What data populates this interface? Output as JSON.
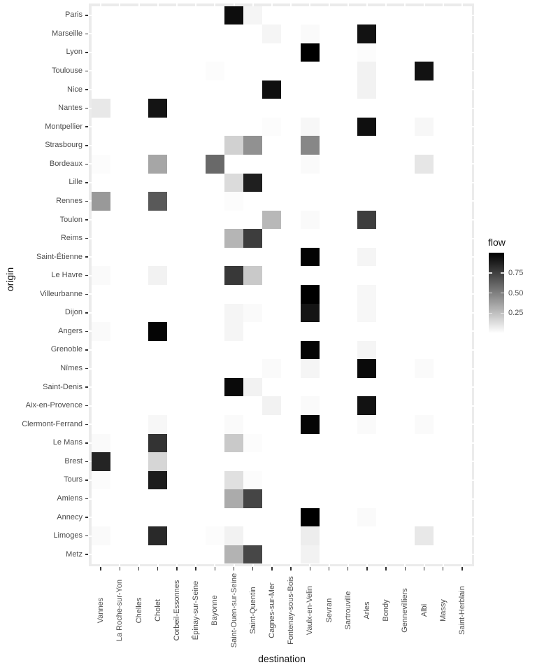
{
  "figure": {
    "x_axis_title": "destination",
    "y_axis_title": "origin",
    "legend_title": "flow"
  },
  "chart_data": {
    "type": "heatmap",
    "title": "",
    "xlabel": "destination",
    "ylabel": "origin",
    "legend": {
      "title": "flow",
      "position": "right",
      "tick_labels": [
        "0.75",
        "0.50",
        "0.25"
      ],
      "tick_values": [
        0.75,
        0.5,
        0.25
      ]
    },
    "fill_scale": {
      "low_color": "#FFFFFF",
      "high_color": "#000000",
      "domain": [
        0,
        1
      ]
    },
    "grid": "on",
    "colors": {
      "panel_background": "#EBEBEB",
      "gridline": "#FFFFFF",
      "axis_text": "#4D4D4D",
      "axis_title": "#111111",
      "tick_mark": "#333333",
      "empty_cell": "#FFFFFF"
    },
    "x_categories": [
      "Vannes",
      "La Roche-sur-Yon",
      "Chelles",
      "Cholet",
      "Corbeil-Essonnes",
      "Épinay-sur-Seine",
      "Bayonne",
      "Saint-Ouen-sur-Seine",
      "Saint-Quentin",
      "Cagnes-sur-Mer",
      "Fontenay-sous-Bois",
      "Vaulx-en-Velin",
      "Sevran",
      "Sartrouville",
      "Arles",
      "Bondy",
      "Gennevilliers",
      "Albi",
      "Massy",
      "Saint-Herblain"
    ],
    "y_categories": [
      "Paris",
      "Marseille",
      "Lyon",
      "Toulouse",
      "Nice",
      "Nantes",
      "Montpellier",
      "Strasbourg",
      "Bordeaux",
      "Lille",
      "Rennes",
      "Toulon",
      "Reims",
      "Saint-Étienne",
      "Le Havre",
      "Villeurbanne",
      "Dijon",
      "Angers",
      "Grenoble",
      "Nîmes",
      "Saint-Denis",
      "Aix-en-Provence",
      "Clermont-Ferrand",
      "Le Mans",
      "Brest",
      "Tours",
      "Amiens",
      "Annecy",
      "Limoges",
      "Metz"
    ],
    "cells": [
      {
        "origin": "Paris",
        "destination": "Saint-Ouen-sur-Seine",
        "flow": 0.95
      },
      {
        "origin": "Paris",
        "destination": "Saint-Quentin",
        "flow": 0.04
      },
      {
        "origin": "Marseille",
        "destination": "Cagnes-sur-Mer",
        "flow": 0.04
      },
      {
        "origin": "Marseille",
        "destination": "Vaulx-en-Velin",
        "flow": 0.02
      },
      {
        "origin": "Marseille",
        "destination": "Arles",
        "flow": 0.93
      },
      {
        "origin": "Lyon",
        "destination": "Vaulx-en-Velin",
        "flow": 1.0
      },
      {
        "origin": "Lyon",
        "destination": "Arles",
        "flow": 0.01
      },
      {
        "origin": "Toulouse",
        "destination": "Bayonne",
        "flow": 0.01
      },
      {
        "origin": "Toulouse",
        "destination": "Arles",
        "flow": 0.05
      },
      {
        "origin": "Toulouse",
        "destination": "Albi",
        "flow": 0.93
      },
      {
        "origin": "Nice",
        "destination": "Cagnes-sur-Mer",
        "flow": 0.94
      },
      {
        "origin": "Nice",
        "destination": "Arles",
        "flow": 0.05
      },
      {
        "origin": "Nantes",
        "destination": "Vannes",
        "flow": 0.09
      },
      {
        "origin": "Nantes",
        "destination": "Cholet",
        "flow": 0.92
      },
      {
        "origin": "Montpellier",
        "destination": "Cagnes-sur-Mer",
        "flow": 0.01
      },
      {
        "origin": "Montpellier",
        "destination": "Vaulx-en-Velin",
        "flow": 0.03
      },
      {
        "origin": "Montpellier",
        "destination": "Arles",
        "flow": 0.94
      },
      {
        "origin": "Montpellier",
        "destination": "Albi",
        "flow": 0.03
      },
      {
        "origin": "Strasbourg",
        "destination": "Saint-Ouen-sur-Seine",
        "flow": 0.18
      },
      {
        "origin": "Strasbourg",
        "destination": "Saint-Quentin",
        "flow": 0.43
      },
      {
        "origin": "Strasbourg",
        "destination": "Vaulx-en-Velin",
        "flow": 0.47
      },
      {
        "origin": "Bordeaux",
        "destination": "Vannes",
        "flow": 0.01
      },
      {
        "origin": "Bordeaux",
        "destination": "Cholet",
        "flow": 0.35
      },
      {
        "origin": "Bordeaux",
        "destination": "Bayonne",
        "flow": 0.59
      },
      {
        "origin": "Bordeaux",
        "destination": "Vaulx-en-Velin",
        "flow": 0.02
      },
      {
        "origin": "Bordeaux",
        "destination": "Albi",
        "flow": 0.1
      },
      {
        "origin": "Lille",
        "destination": "Saint-Ouen-sur-Seine",
        "flow": 0.14
      },
      {
        "origin": "Lille",
        "destination": "Saint-Quentin",
        "flow": 0.88
      },
      {
        "origin": "Rennes",
        "destination": "Vannes",
        "flow": 0.4
      },
      {
        "origin": "Rennes",
        "destination": "Cholet",
        "flow": 0.65
      },
      {
        "origin": "Rennes",
        "destination": "Saint-Ouen-sur-Seine",
        "flow": 0.01
      },
      {
        "origin": "Toulon",
        "destination": "Cagnes-sur-Mer",
        "flow": 0.28
      },
      {
        "origin": "Toulon",
        "destination": "Vaulx-en-Velin",
        "flow": 0.02
      },
      {
        "origin": "Toulon",
        "destination": "Arles",
        "flow": 0.76
      },
      {
        "origin": "Reims",
        "destination": "Saint-Ouen-sur-Seine",
        "flow": 0.29
      },
      {
        "origin": "Reims",
        "destination": "Saint-Quentin",
        "flow": 0.76
      },
      {
        "origin": "Saint-Étienne",
        "destination": "Vaulx-en-Velin",
        "flow": 0.99
      },
      {
        "origin": "Saint-Étienne",
        "destination": "Arles",
        "flow": 0.04
      },
      {
        "origin": "Le Havre",
        "destination": "Vannes",
        "flow": 0.02
      },
      {
        "origin": "Le Havre",
        "destination": "Cholet",
        "flow": 0.05
      },
      {
        "origin": "Le Havre",
        "destination": "Saint-Ouen-sur-Seine",
        "flow": 0.78
      },
      {
        "origin": "Le Havre",
        "destination": "Saint-Quentin",
        "flow": 0.21
      },
      {
        "origin": "Villeurbanne",
        "destination": "Vaulx-en-Velin",
        "flow": 1.0
      },
      {
        "origin": "Villeurbanne",
        "destination": "Arles",
        "flow": 0.03
      },
      {
        "origin": "Dijon",
        "destination": "Saint-Ouen-sur-Seine",
        "flow": 0.04
      },
      {
        "origin": "Dijon",
        "destination": "Saint-Quentin",
        "flow": 0.02
      },
      {
        "origin": "Dijon",
        "destination": "Vaulx-en-Velin",
        "flow": 0.92
      },
      {
        "origin": "Dijon",
        "destination": "Arles",
        "flow": 0.03
      },
      {
        "origin": "Angers",
        "destination": "Vannes",
        "flow": 0.02
      },
      {
        "origin": "Angers",
        "destination": "Cholet",
        "flow": 0.98
      },
      {
        "origin": "Angers",
        "destination": "Saint-Ouen-sur-Seine",
        "flow": 0.04
      },
      {
        "origin": "Grenoble",
        "destination": "Vaulx-en-Velin",
        "flow": 0.98
      },
      {
        "origin": "Grenoble",
        "destination": "Arles",
        "flow": 0.04
      },
      {
        "origin": "Nîmes",
        "destination": "Cagnes-sur-Mer",
        "flow": 0.02
      },
      {
        "origin": "Nîmes",
        "destination": "Vaulx-en-Velin",
        "flow": 0.04
      },
      {
        "origin": "Nîmes",
        "destination": "Arles",
        "flow": 0.96
      },
      {
        "origin": "Nîmes",
        "destination": "Albi",
        "flow": 0.02
      },
      {
        "origin": "Saint-Denis",
        "destination": "Saint-Ouen-sur-Seine",
        "flow": 0.96
      },
      {
        "origin": "Saint-Denis",
        "destination": "Saint-Quentin",
        "flow": 0.05
      },
      {
        "origin": "Aix-en-Provence",
        "destination": "Cagnes-sur-Mer",
        "flow": 0.05
      },
      {
        "origin": "Aix-en-Provence",
        "destination": "Vaulx-en-Velin",
        "flow": 0.02
      },
      {
        "origin": "Aix-en-Provence",
        "destination": "Arles",
        "flow": 0.93
      },
      {
        "origin": "Clermont-Ferrand",
        "destination": "Cholet",
        "flow": 0.03
      },
      {
        "origin": "Clermont-Ferrand",
        "destination": "Saint-Ouen-sur-Seine",
        "flow": 0.02
      },
      {
        "origin": "Clermont-Ferrand",
        "destination": "Vaulx-en-Velin",
        "flow": 0.98
      },
      {
        "origin": "Clermont-Ferrand",
        "destination": "Arles",
        "flow": 0.02
      },
      {
        "origin": "Clermont-Ferrand",
        "destination": "Albi",
        "flow": 0.02
      },
      {
        "origin": "Le Mans",
        "destination": "Vannes",
        "flow": 0.02
      },
      {
        "origin": "Le Mans",
        "destination": "Cholet",
        "flow": 0.8
      },
      {
        "origin": "Le Mans",
        "destination": "Saint-Ouen-sur-Seine",
        "flow": 0.21
      },
      {
        "origin": "Le Mans",
        "destination": "Saint-Quentin",
        "flow": 0.01
      },
      {
        "origin": "Brest",
        "destination": "Vannes",
        "flow": 0.86
      },
      {
        "origin": "Brest",
        "destination": "Cholet",
        "flow": 0.16
      },
      {
        "origin": "Tours",
        "destination": "Vannes",
        "flow": 0.01
      },
      {
        "origin": "Tours",
        "destination": "Cholet",
        "flow": 0.89
      },
      {
        "origin": "Tours",
        "destination": "Saint-Ouen-sur-Seine",
        "flow": 0.12
      },
      {
        "origin": "Tours",
        "destination": "Saint-Quentin",
        "flow": 0.01
      },
      {
        "origin": "Amiens",
        "destination": "Saint-Ouen-sur-Seine",
        "flow": 0.33
      },
      {
        "origin": "Amiens",
        "destination": "Saint-Quentin",
        "flow": 0.73
      },
      {
        "origin": "Annecy",
        "destination": "Vaulx-en-Velin",
        "flow": 1.0
      },
      {
        "origin": "Annecy",
        "destination": "Arles",
        "flow": 0.02
      },
      {
        "origin": "Limoges",
        "destination": "Vannes",
        "flow": 0.02
      },
      {
        "origin": "Limoges",
        "destination": "Cholet",
        "flow": 0.84
      },
      {
        "origin": "Limoges",
        "destination": "Bayonne",
        "flow": 0.01
      },
      {
        "origin": "Limoges",
        "destination": "Saint-Ouen-sur-Seine",
        "flow": 0.05
      },
      {
        "origin": "Limoges",
        "destination": "Vaulx-en-Velin",
        "flow": 0.07
      },
      {
        "origin": "Limoges",
        "destination": "Albi",
        "flow": 0.09
      },
      {
        "origin": "Metz",
        "destination": "Saint-Ouen-sur-Seine",
        "flow": 0.3
      },
      {
        "origin": "Metz",
        "destination": "Saint-Quentin",
        "flow": 0.72
      },
      {
        "origin": "Metz",
        "destination": "Vaulx-en-Velin",
        "flow": 0.05
      }
    ]
  }
}
